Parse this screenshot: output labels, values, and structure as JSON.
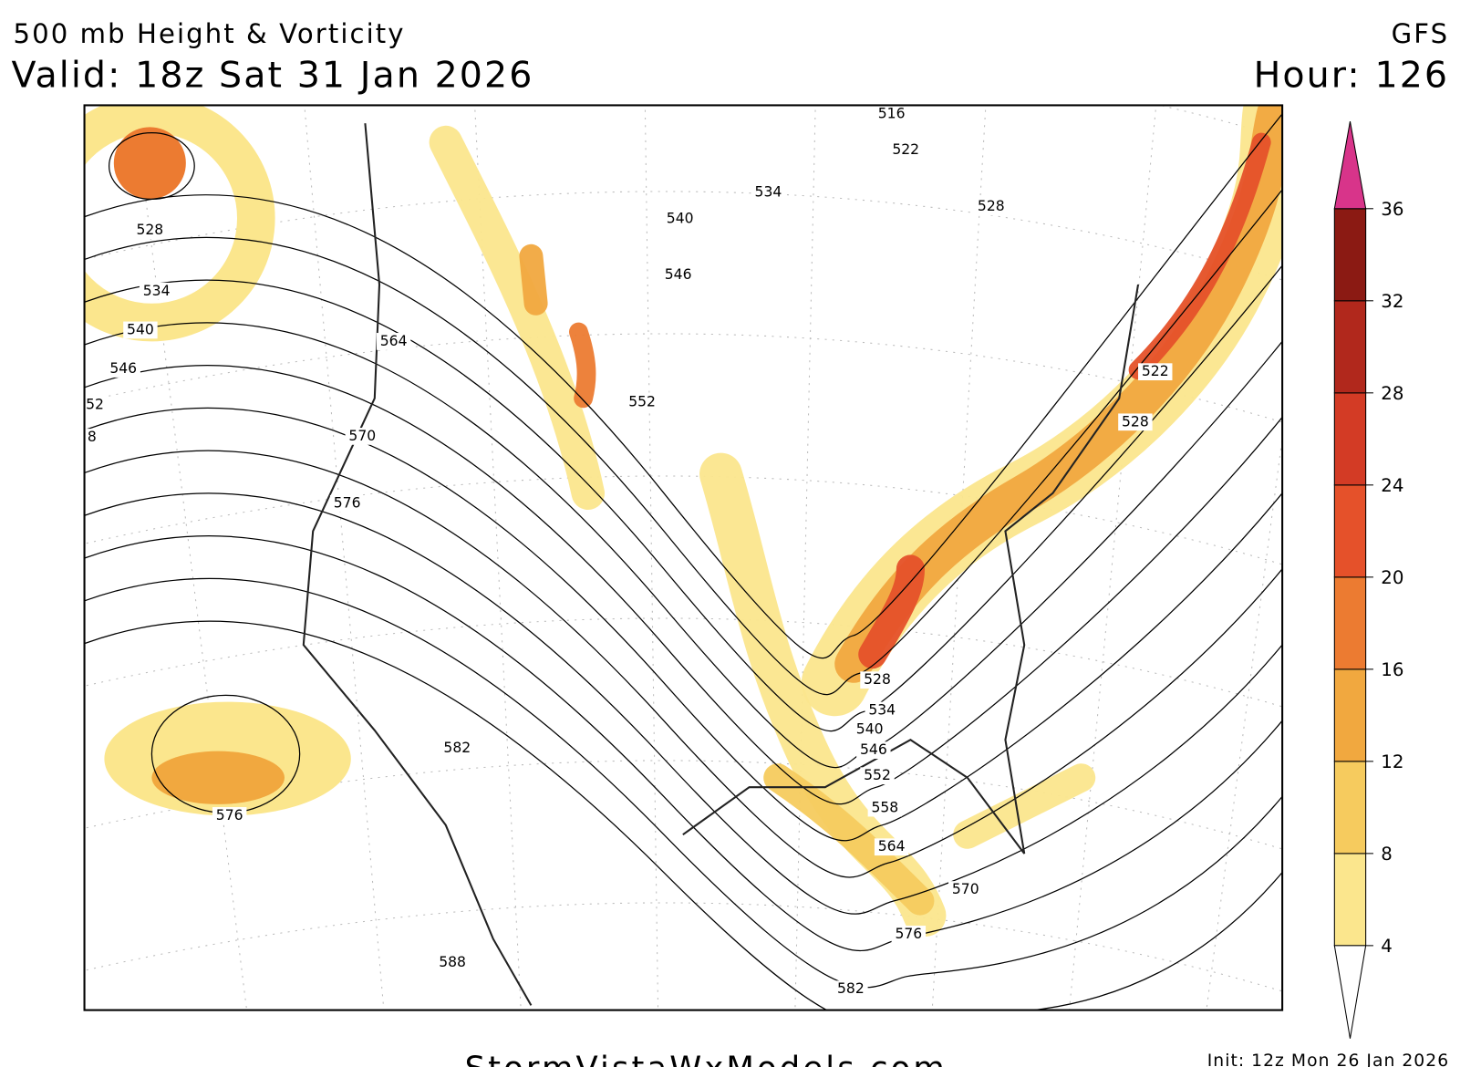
{
  "header": {
    "title": "500 mb Height & Vorticity",
    "valid": "Valid: 18z Sat 31 Jan 2026",
    "model": "GFS",
    "hour": "Hour: 126"
  },
  "contour_labels": [
    "516",
    "522",
    "528",
    "534",
    "540",
    "546",
    "552",
    "564",
    "570",
    "576",
    "528",
    "534",
    "540",
    "546",
    "52",
    "8",
    "576",
    "582",
    "588",
    "582",
    "576",
    "570",
    "564",
    "558",
    "552",
    "546",
    "540",
    "534",
    "528",
    "522",
    "528"
  ],
  "colorbar": {
    "levels": [
      4,
      8,
      12,
      16,
      20,
      24,
      28,
      32,
      36
    ],
    "colors": [
      "#fbe68d",
      "#f6cb5e",
      "#f1a83f",
      "#ec7b31",
      "#e5512a",
      "#d33b25",
      "#b1281c",
      "#8b1a13"
    ],
    "over_color": "#d8348a"
  },
  "footer": {
    "site": "StormVistaWxModels.com",
    "init": "Init: 12z Mon 26 Jan 2026"
  }
}
